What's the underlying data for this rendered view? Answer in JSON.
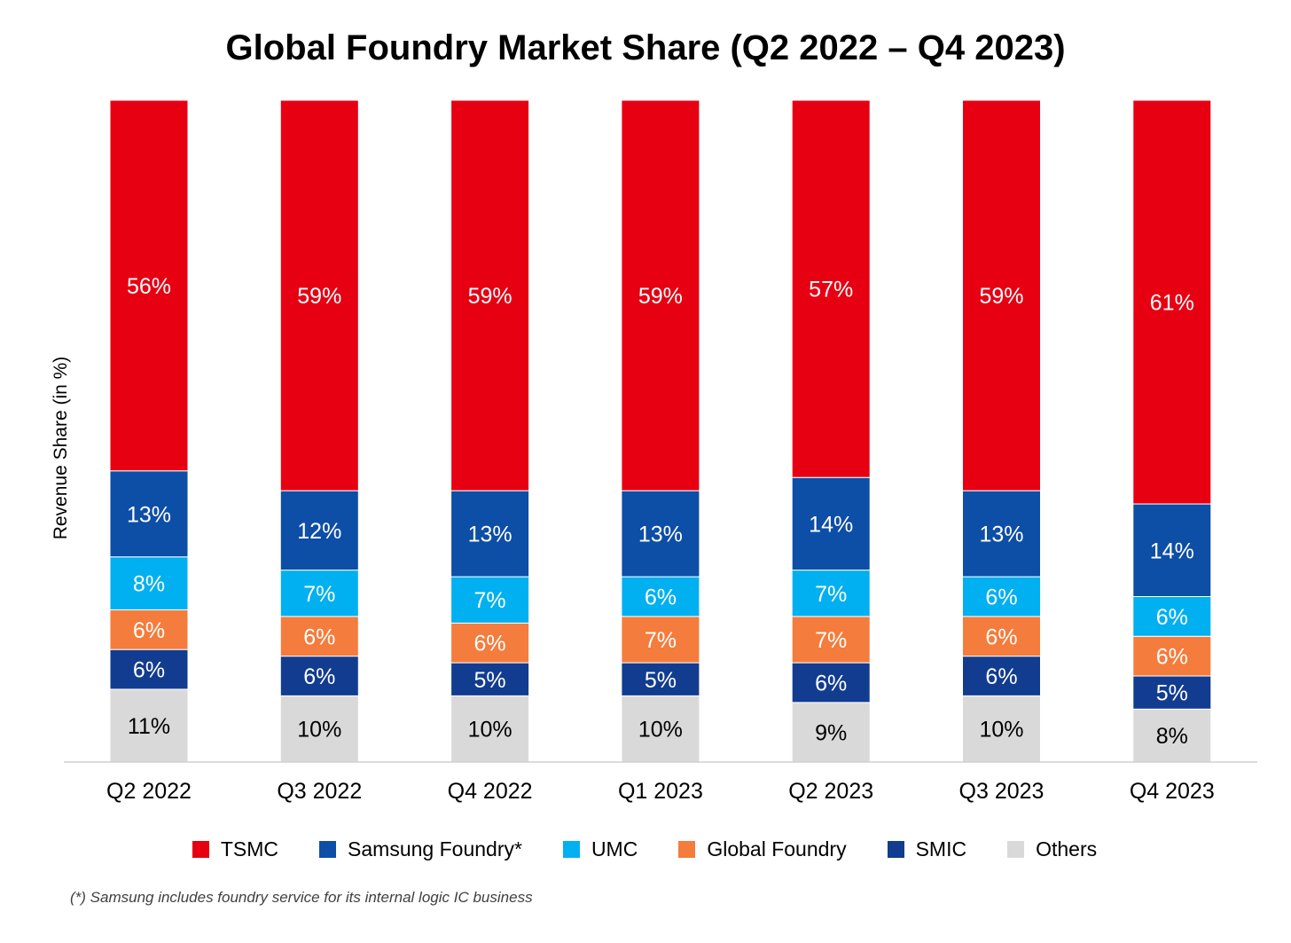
{
  "chart_data": {
    "type": "bar",
    "stacked": true,
    "title": "Global Foundry Market Share (Q2 2022 – Q4 2023)",
    "xlabel": "",
    "ylabel": "Revenue Share (in %)",
    "ylim": [
      0,
      100
    ],
    "grid": false,
    "legend_position": "bottom",
    "categories": [
      "Q2 2022",
      "Q3 2022",
      "Q4 2022",
      "Q1 2023",
      "Q2 2023",
      "Q3 2023",
      "Q4 2023"
    ],
    "series": [
      {
        "name": "Others",
        "color": "#D9D9D9",
        "label_color": "#000000",
        "values": [
          11,
          10,
          10,
          10,
          9,
          10,
          8
        ]
      },
      {
        "name": "SMIC",
        "color": "#123C8F",
        "label_color": "#FFFFFF",
        "values": [
          6,
          6,
          5,
          5,
          6,
          6,
          5
        ]
      },
      {
        "name": "Global Foundry",
        "color": "#F47C3C",
        "label_color": "#FFFFFF",
        "values": [
          6,
          6,
          6,
          7,
          7,
          6,
          6
        ]
      },
      {
        "name": "UMC",
        "color": "#00B0F0",
        "label_color": "#FFFFFF",
        "values": [
          8,
          7,
          7,
          6,
          7,
          6,
          6
        ]
      },
      {
        "name": "Samsung Foundry*",
        "color": "#0D4EA6",
        "label_color": "#FFFFFF",
        "values": [
          13,
          12,
          13,
          13,
          14,
          13,
          14
        ]
      },
      {
        "name": "TSMC",
        "color": "#E60012",
        "label_color": "#FFFFFF",
        "values": [
          56,
          59,
          59,
          59,
          57,
          59,
          61
        ]
      }
    ],
    "legend_order": [
      "TSMC",
      "Samsung Foundry*",
      "UMC",
      "Global Foundry",
      "SMIC",
      "Others"
    ],
    "footnote": "(*) Samsung includes foundry service for its internal logic IC business"
  }
}
